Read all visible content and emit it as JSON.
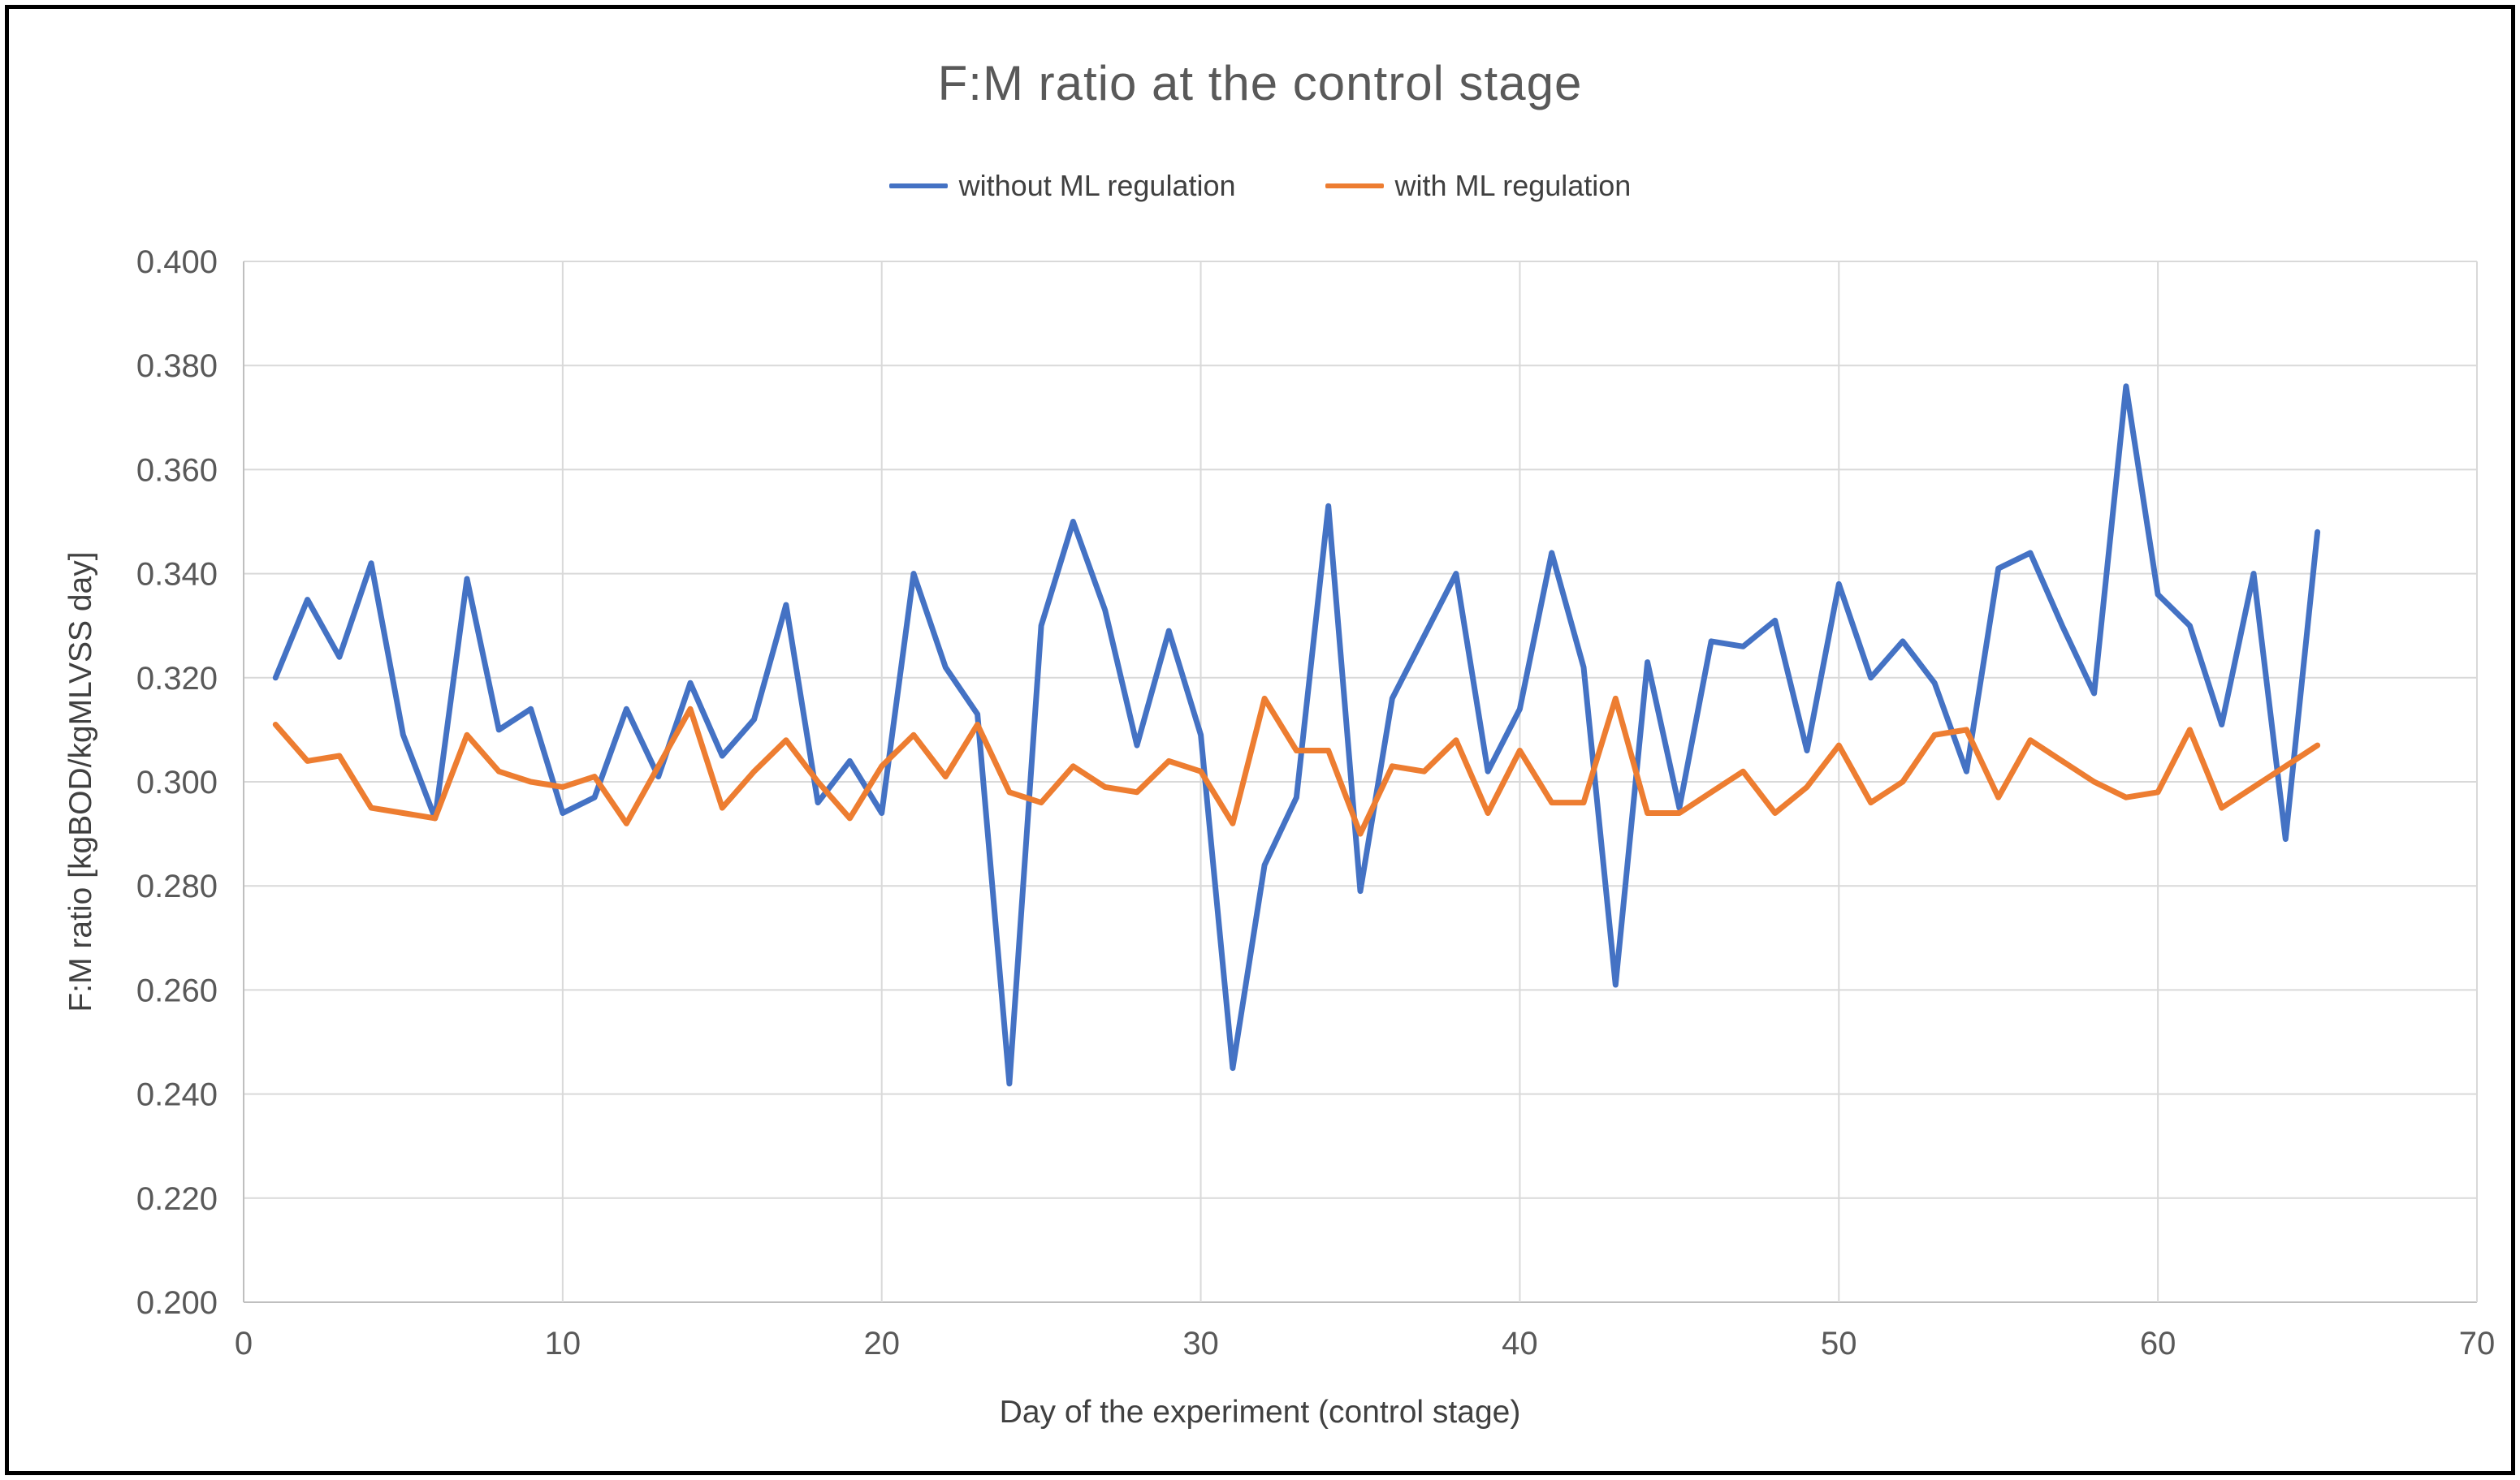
{
  "chart_data": {
    "type": "line",
    "title": "F:M ratio at the control stage",
    "xlabel": "Day of the experiment (control stage)",
    "ylabel": "F:M ratio [kgBOD/kgMLVSS day]",
    "xlim": [
      0,
      70
    ],
    "ylim": [
      0.2,
      0.4
    ],
    "x_ticks": [
      0,
      10,
      20,
      30,
      40,
      50,
      60,
      70
    ],
    "y_ticks": [
      0.2,
      0.22,
      0.24,
      0.26,
      0.28,
      0.3,
      0.32,
      0.34,
      0.36,
      0.38,
      0.4
    ],
    "grid": true,
    "legend_position": "top-center",
    "x": [
      1,
      2,
      3,
      4,
      5,
      6,
      7,
      8,
      9,
      10,
      11,
      12,
      13,
      14,
      15,
      16,
      17,
      18,
      19,
      20,
      21,
      22,
      23,
      24,
      25,
      26,
      27,
      28,
      29,
      30,
      31,
      32,
      33,
      34,
      35,
      36,
      37,
      38,
      39,
      40,
      41,
      42,
      43,
      44,
      45,
      46,
      47,
      48,
      49,
      50,
      51,
      52,
      53,
      54,
      55,
      56,
      57,
      58,
      59,
      60,
      61,
      62,
      63,
      64,
      65
    ],
    "series": [
      {
        "name": "without ML regulation",
        "color": "#4472C4",
        "values": [
          0.32,
          0.335,
          0.324,
          0.342,
          0.309,
          0.293,
          0.339,
          0.31,
          0.314,
          0.294,
          0.297,
          0.314,
          0.301,
          0.319,
          0.305,
          0.312,
          0.334,
          0.296,
          0.304,
          0.294,
          0.34,
          0.322,
          0.313,
          0.242,
          0.33,
          0.35,
          0.333,
          0.307,
          0.329,
          0.309,
          0.245,
          0.284,
          0.297,
          0.353,
          0.279,
          0.316,
          0.328,
          0.34,
          0.302,
          0.314,
          0.344,
          0.322,
          0.261,
          0.323,
          0.295,
          0.327,
          0.326,
          0.331,
          0.306,
          0.338,
          0.32,
          0.327,
          0.319,
          0.302,
          0.341,
          0.344,
          0.33,
          0.317,
          0.376,
          0.336,
          0.33,
          0.311,
          0.34,
          0.289,
          0.348
        ]
      },
      {
        "name": "with ML regulation",
        "color": "#ED7D31",
        "values": [
          0.311,
          0.304,
          0.305,
          0.295,
          0.294,
          0.293,
          0.309,
          0.302,
          0.3,
          0.299,
          0.301,
          0.292,
          0.303,
          0.314,
          0.295,
          0.302,
          0.308,
          0.3,
          0.293,
          0.303,
          0.309,
          0.301,
          0.311,
          0.298,
          0.296,
          0.303,
          0.299,
          0.298,
          0.304,
          0.302,
          0.292,
          0.316,
          0.306,
          0.306,
          0.29,
          0.303,
          0.302,
          0.308,
          0.294,
          0.306,
          0.296,
          0.296,
          0.316,
          0.294,
          0.294,
          0.298,
          0.302,
          0.294,
          0.299,
          0.307,
          0.296,
          0.3,
          0.309,
          0.31,
          0.297,
          0.308,
          0.304,
          0.3,
          0.297,
          0.298,
          0.31,
          0.295,
          0.299,
          0.303,
          0.307
        ]
      }
    ],
    "styles": {
      "gridline_color": "#D9D9D9",
      "axis_line_color": "#BFBFBF",
      "tick_label_color": "#595959",
      "title_color": "#595959",
      "background": "#FFFFFF",
      "frame_color": "#000000"
    }
  }
}
